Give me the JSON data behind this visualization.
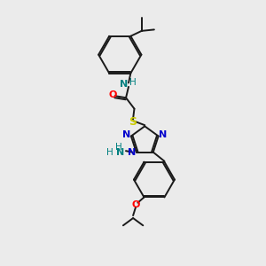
{
  "background_color": "#ebebeb",
  "bond_color": "#1a1a1a",
  "N_color": "#0000cc",
  "O_color": "#ff0000",
  "S_color": "#cccc00",
  "NH_color": "#008080",
  "lw": 1.4,
  "fs": 7.5,
  "fs_small": 6.5,
  "xlim": [
    0,
    10
  ],
  "ylim": [
    0,
    10
  ]
}
